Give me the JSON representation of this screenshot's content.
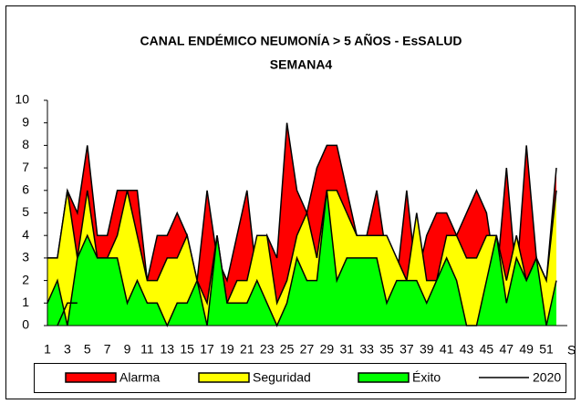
{
  "chart_data": {
    "type": "area",
    "title": "CANAL ENDÉMICO NEUMONÍA > 5 AÑOS - EsSALUD",
    "subtitle": "SEMANA4",
    "x_label": "S",
    "categories": [
      "1",
      null,
      "3",
      null,
      "5",
      null,
      "7",
      null,
      "9",
      null,
      "11",
      null,
      "13",
      null,
      "15",
      null,
      "17",
      null,
      "19",
      null,
      "21",
      null,
      "23",
      null,
      "25",
      null,
      "27",
      null,
      "29",
      null,
      "31",
      null,
      "33",
      null,
      "35",
      null,
      "37",
      null,
      "39",
      null,
      "41",
      null,
      "43",
      null,
      "45",
      null,
      "47",
      null,
      "49",
      null,
      "51",
      null
    ],
    "ylim": [
      0,
      10
    ],
    "yticks": [
      0,
      1,
      2,
      3,
      4,
      5,
      6,
      7,
      8,
      9,
      10
    ],
    "legend": "bottom",
    "series": [
      {
        "name": "Alarma",
        "color": "#ff0000",
        "values": [
          3,
          3,
          6,
          5,
          8,
          4,
          4,
          6,
          6,
          6,
          2,
          4,
          4,
          5,
          4,
          2,
          6,
          3,
          2,
          4,
          6,
          2,
          4,
          3,
          9,
          6,
          5,
          7,
          8,
          8,
          6,
          4,
          4,
          6,
          3,
          2,
          6,
          2,
          4,
          5,
          5,
          4,
          5,
          6,
          5,
          2,
          7,
          2,
          8,
          3,
          2,
          7
        ]
      },
      {
        "name": "Seguridad",
        "color": "#ffff00",
        "values": [
          3,
          3,
          6,
          3,
          6,
          3,
          3,
          4,
          6,
          4,
          2,
          2,
          3,
          3,
          4,
          2,
          1,
          4,
          1,
          2,
          2,
          4,
          4,
          1,
          2,
          4,
          5,
          3,
          6,
          6,
          5,
          4,
          4,
          4,
          4,
          3,
          2,
          5,
          2,
          2,
          4,
          4,
          3,
          3,
          4,
          4,
          2,
          4,
          2,
          3,
          2,
          6
        ]
      },
      {
        "name": "Éxito",
        "color": "#00ff00",
        "values": [
          1,
          2,
          0,
          3,
          4,
          3,
          3,
          3,
          1,
          2,
          1,
          1,
          0,
          1,
          1,
          2,
          0,
          4,
          1,
          1,
          1,
          2,
          1,
          0,
          1,
          3,
          2,
          2,
          6,
          2,
          3,
          3,
          3,
          3,
          1,
          2,
          2,
          2,
          1,
          2,
          3,
          2,
          0,
          0,
          2,
          4,
          1,
          3,
          2,
          3,
          0,
          2
        ]
      },
      {
        "name": "2020",
        "color": "#000000",
        "type": "line",
        "values": [
          null,
          0,
          1,
          1,
          null,
          null,
          null,
          null,
          null,
          null,
          null,
          null,
          null,
          null,
          null,
          null,
          null,
          null,
          null,
          null,
          null,
          null,
          null,
          null,
          null,
          null,
          null,
          null,
          null,
          null,
          null,
          null,
          null,
          null,
          null,
          null,
          null,
          null,
          null,
          null,
          null,
          null,
          null,
          null,
          null,
          null,
          null,
          null,
          null,
          null,
          null,
          null
        ]
      }
    ]
  }
}
